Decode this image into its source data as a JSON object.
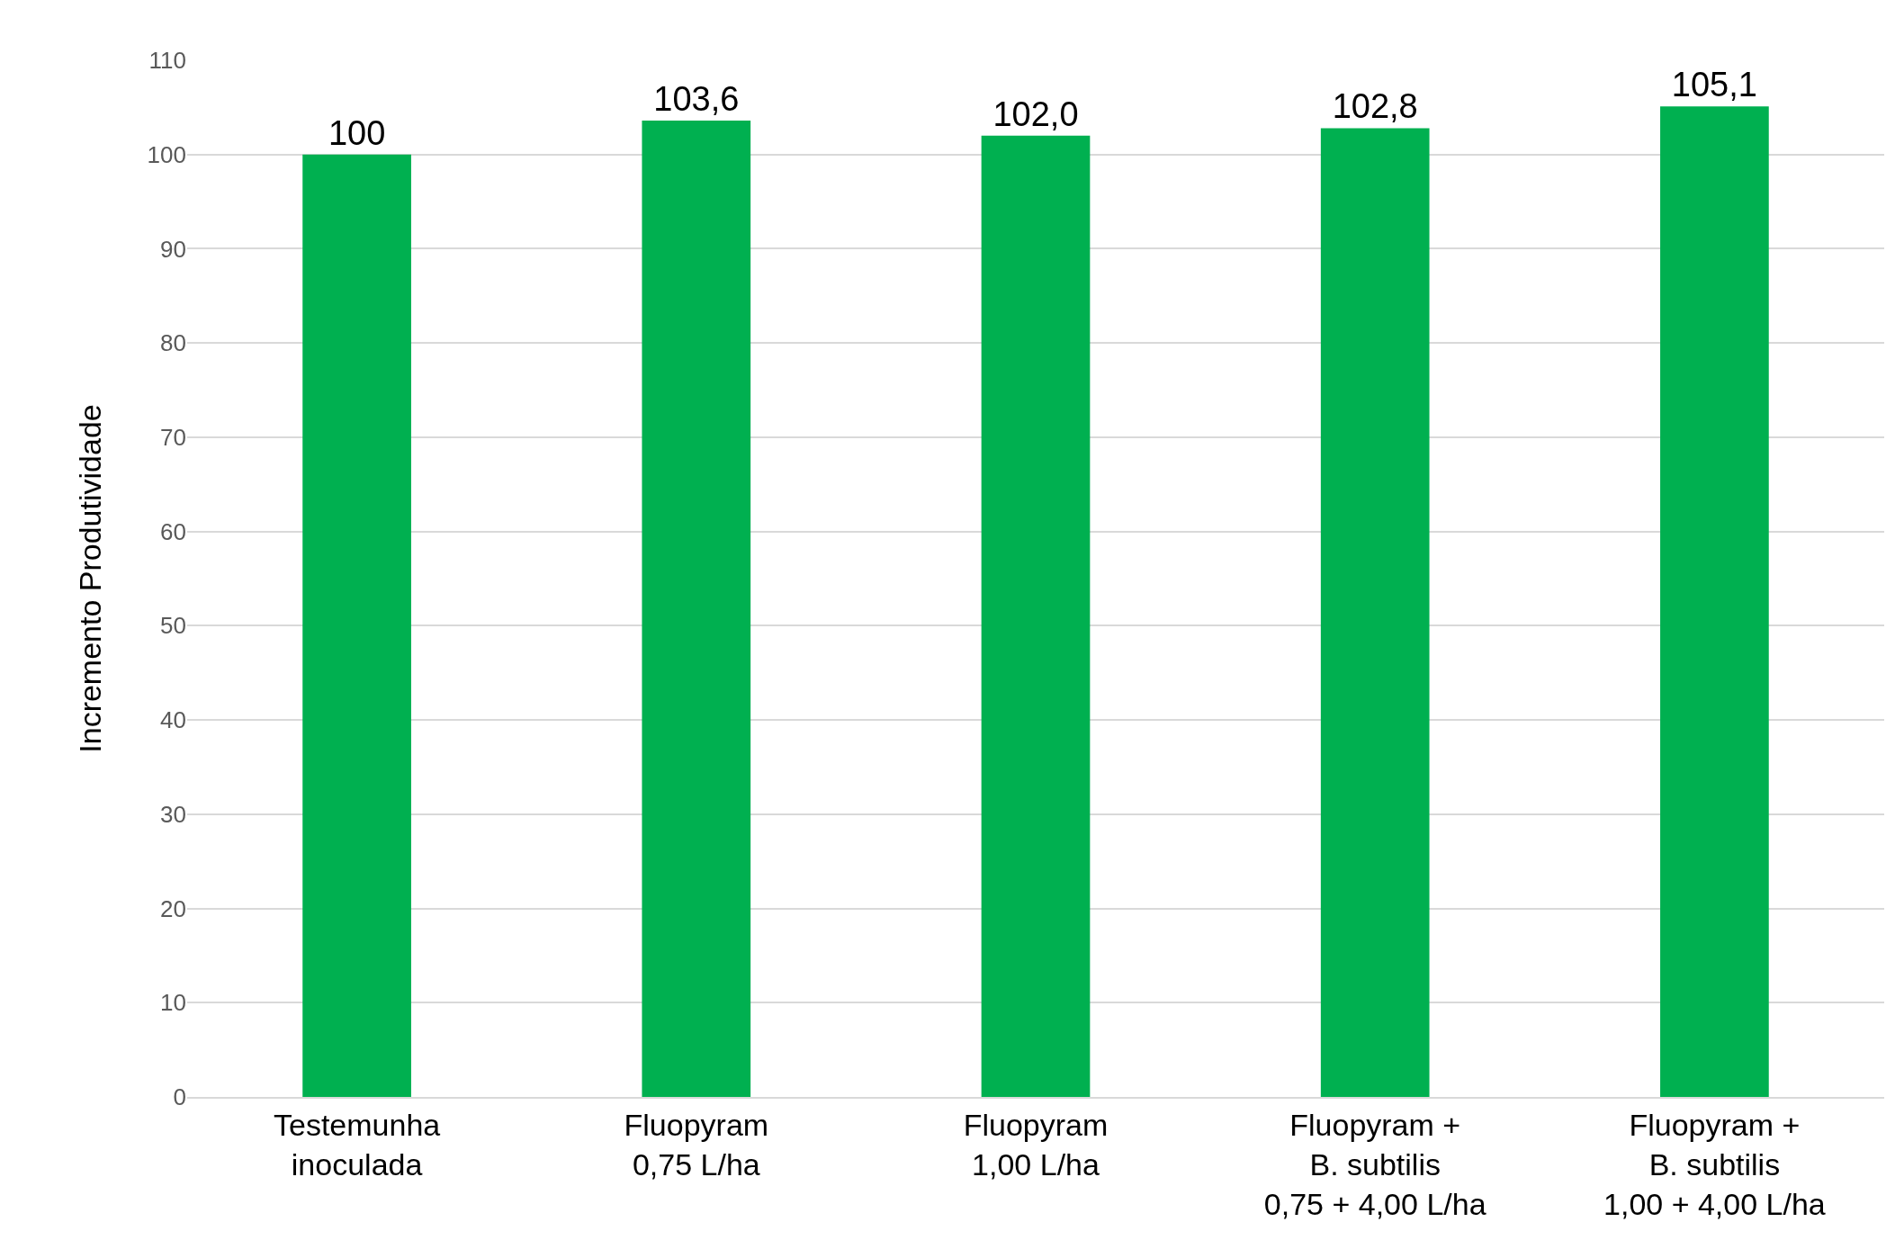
{
  "chart_data": {
    "type": "bar",
    "ylabel": "Incremento Produtividade",
    "categories": [
      "Testemunha\ninoculada",
      "Fluopyram\n0,75 L/ha",
      "Fluopyram\n1,00 L/ha",
      "Fluopyram +\nB. subtilis\n0,75 + 4,00 L/ha",
      "Fluopyram +\nB. subtilis\n1,00 + 4,00 L/ha"
    ],
    "values": [
      100,
      103.6,
      102.0,
      102.8,
      105.1
    ],
    "value_labels": [
      "100",
      "103,6",
      "102,0",
      "102,8",
      "105,1"
    ],
    "color": "#00b050",
    "ylim": [
      0,
      110
    ],
    "yticks": [
      0,
      10,
      20,
      30,
      40,
      50,
      60,
      70,
      80,
      90,
      100,
      110
    ],
    "grid": "y"
  }
}
